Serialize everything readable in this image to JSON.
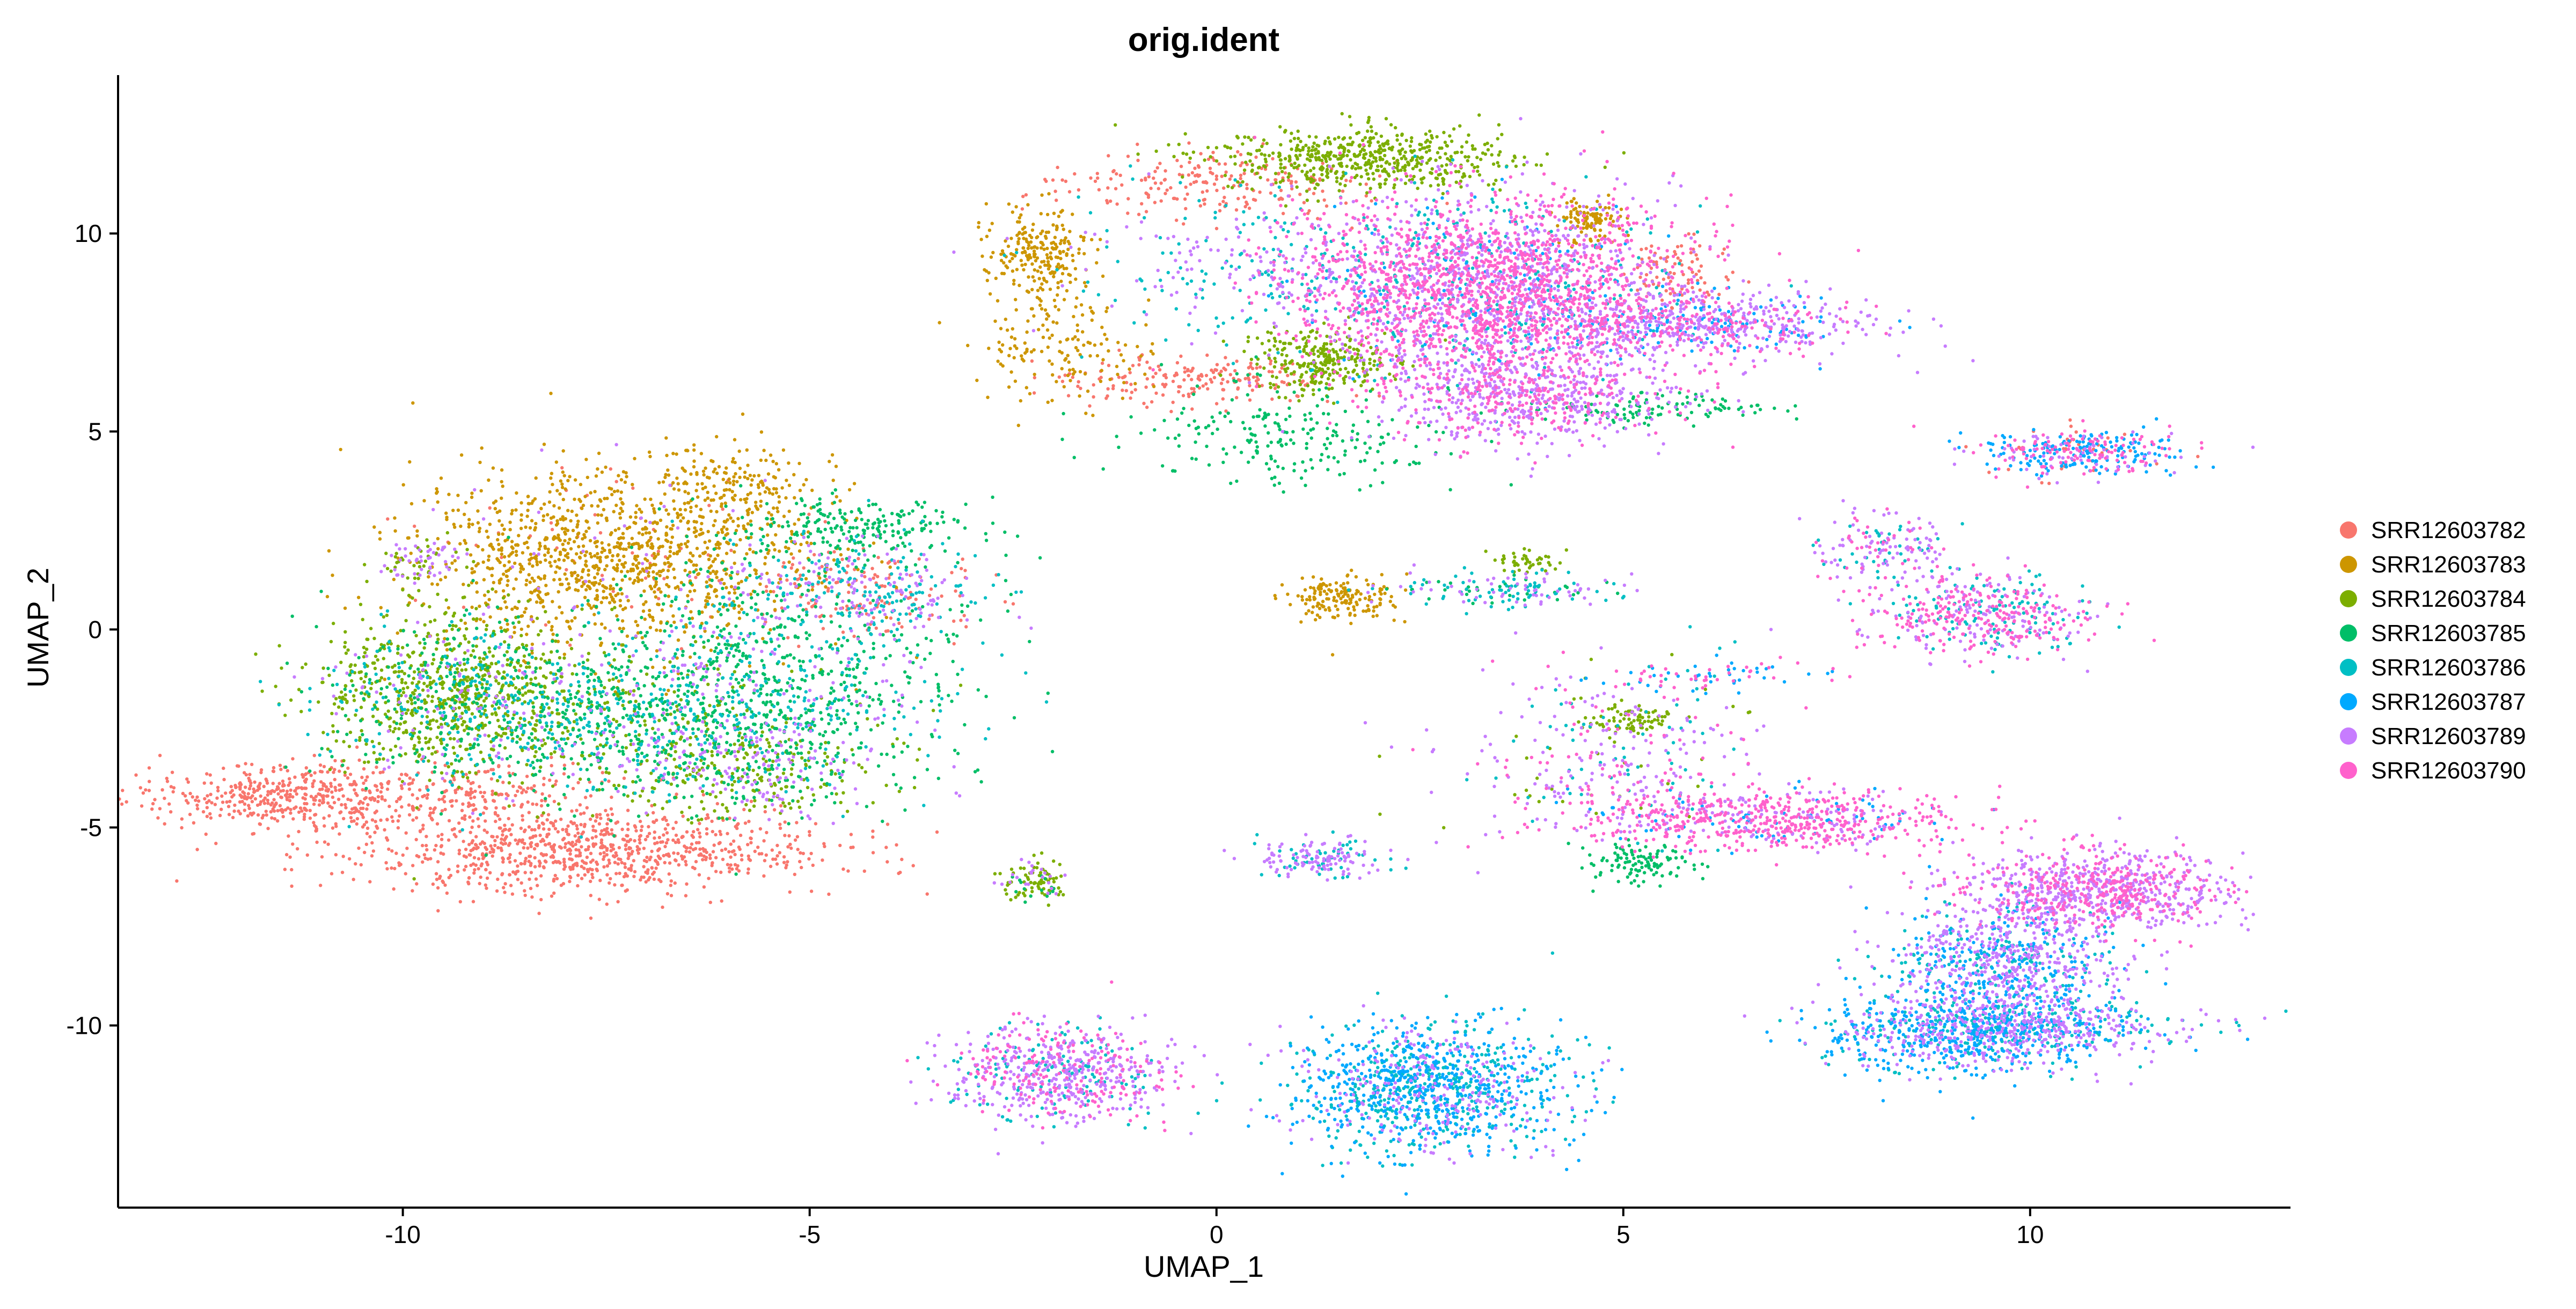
{
  "chart_data": {
    "type": "scatter",
    "title": "orig.ident",
    "xlabel": "UMAP_1",
    "ylabel": "UMAP_2",
    "xlim": [
      -13.5,
      13.2
    ],
    "ylim": [
      -14.6,
      14.0
    ],
    "x_ticks": [
      -10,
      -5,
      0,
      5,
      10
    ],
    "y_ticks": [
      -10,
      -5,
      0,
      5,
      10
    ],
    "grid": false,
    "legend_position": "right",
    "series": [
      {
        "name": "SRR12603782",
        "color": "#F8766D"
      },
      {
        "name": "SRR12603783",
        "color": "#CD9600"
      },
      {
        "name": "SRR12603784",
        "color": "#7CAE00"
      },
      {
        "name": "SRR12603785",
        "color": "#00BE67"
      },
      {
        "name": "SRR12603786",
        "color": "#00BFC4"
      },
      {
        "name": "SRR12603787",
        "color": "#00A9FF"
      },
      {
        "name": "SRR12603789",
        "color": "#C77CFF"
      },
      {
        "name": "SRR12603790",
        "color": "#FF61CC"
      }
    ],
    "clusters": [
      {
        "cx": -11.6,
        "cy": -4.2,
        "sx": 0.9,
        "sy": 0.4,
        "n": 700,
        "mix": [
          [
            0,
            1
          ]
        ]
      },
      {
        "cx": -9.5,
        "cy": -4.2,
        "sx": 1.2,
        "sy": 0.4,
        "n": 500,
        "mix": [
          [
            0,
            1
          ]
        ]
      },
      {
        "cx": -7.8,
        "cy": -5.6,
        "sx": 1.5,
        "sy": 0.5,
        "n": 1600,
        "mix": [
          [
            0,
            1
          ]
        ]
      },
      {
        "cx": -7.5,
        "cy": 1.8,
        "sx": 1.2,
        "sy": 1.1,
        "n": 2200,
        "mix": [
          [
            1,
            0.92
          ],
          [
            6,
            0.04
          ],
          [
            0,
            0.04
          ]
        ]
      },
      {
        "cx": -5.8,
        "cy": 3.5,
        "sx": 0.6,
        "sy": 0.6,
        "n": 300,
        "mix": [
          [
            1,
            1
          ]
        ]
      },
      {
        "cx": -9.4,
        "cy": -1.5,
        "sx": 0.8,
        "sy": 1.0,
        "n": 1800,
        "mix": [
          [
            2,
            0.7
          ],
          [
            3,
            0.15
          ],
          [
            4,
            0.1
          ],
          [
            6,
            0.05
          ]
        ]
      },
      {
        "cx": -7.3,
        "cy": -2.3,
        "sx": 1.5,
        "sy": 1.0,
        "n": 2000,
        "mix": [
          [
            3,
            0.35
          ],
          [
            4,
            0.3
          ],
          [
            2,
            0.25
          ],
          [
            6,
            0.1
          ]
        ]
      },
      {
        "cx": -5.5,
        "cy": -1.2,
        "sx": 1.2,
        "sy": 1.5,
        "n": 1600,
        "mix": [
          [
            3,
            0.65
          ],
          [
            4,
            0.2
          ],
          [
            6,
            0.15
          ]
        ]
      },
      {
        "cx": -5.8,
        "cy": -3.6,
        "sx": 0.8,
        "sy": 0.6,
        "n": 600,
        "mix": [
          [
            2,
            0.5
          ],
          [
            6,
            0.3
          ],
          [
            3,
            0.2
          ]
        ]
      },
      {
        "cx": -4.3,
        "cy": 1.0,
        "sx": 0.7,
        "sy": 0.6,
        "n": 700,
        "mix": [
          [
            0,
            0.4
          ],
          [
            4,
            0.35
          ],
          [
            6,
            0.25
          ]
        ]
      },
      {
        "cx": -4.4,
        "cy": 2.5,
        "sx": 0.7,
        "sy": 0.4,
        "n": 400,
        "mix": [
          [
            3,
            1
          ]
        ]
      },
      {
        "cx": -9.8,
        "cy": 1.7,
        "sx": 0.3,
        "sy": 0.3,
        "n": 150,
        "mix": [
          [
            6,
            0.5
          ],
          [
            2,
            0.5
          ]
        ]
      },
      {
        "cx": -2.2,
        "cy": 9.6,
        "sx": 0.3,
        "sy": 0.5,
        "n": 400,
        "mix": [
          [
            1,
            1
          ]
        ]
      },
      {
        "cx": -1.9,
        "cy": 7.2,
        "sx": 0.6,
        "sy": 0.8,
        "n": 300,
        "mix": [
          [
            1,
            1
          ]
        ]
      },
      {
        "cx": -0.2,
        "cy": 11.3,
        "sx": 1.0,
        "sy": 0.4,
        "n": 400,
        "mix": [
          [
            0,
            1
          ]
        ]
      },
      {
        "cx": -0.2,
        "cy": 6.3,
        "sx": 0.8,
        "sy": 0.3,
        "n": 350,
        "mix": [
          [
            0,
            1
          ]
        ]
      },
      {
        "cx": 1.8,
        "cy": 11.9,
        "sx": 0.9,
        "sy": 0.4,
        "n": 1000,
        "mix": [
          [
            2,
            1
          ]
        ]
      },
      {
        "cx": 1.3,
        "cy": 6.8,
        "sx": 0.4,
        "sy": 0.4,
        "n": 500,
        "mix": [
          [
            2,
            1
          ]
        ]
      },
      {
        "cx": 0.9,
        "cy": 4.9,
        "sx": 1.0,
        "sy": 0.6,
        "n": 400,
        "mix": [
          [
            3,
            1
          ]
        ]
      },
      {
        "cx": 0.4,
        "cy": 9.2,
        "sx": 1.2,
        "sy": 0.9,
        "n": 500,
        "mix": [
          [
            4,
            0.6
          ],
          [
            6,
            0.4
          ]
        ]
      },
      {
        "cx": 3.3,
        "cy": 8.6,
        "sx": 1.2,
        "sy": 1.2,
        "n": 5000,
        "mix": [
          [
            7,
            0.55
          ],
          [
            6,
            0.3
          ],
          [
            4,
            0.1
          ],
          [
            5,
            0.05
          ]
        ]
      },
      {
        "cx": 3.8,
        "cy": 5.9,
        "sx": 0.9,
        "sy": 0.6,
        "n": 1300,
        "mix": [
          [
            6,
            0.7
          ],
          [
            7,
            0.3
          ]
        ]
      },
      {
        "cx": 5.8,
        "cy": 7.7,
        "sx": 1.1,
        "sy": 0.4,
        "n": 1300,
        "mix": [
          [
            6,
            0.5
          ],
          [
            7,
            0.3
          ],
          [
            5,
            0.2
          ]
        ]
      },
      {
        "cx": 4.6,
        "cy": 10.3,
        "sx": 0.2,
        "sy": 0.3,
        "n": 200,
        "mix": [
          [
            1,
            1
          ]
        ]
      },
      {
        "cx": 5.7,
        "cy": 9.0,
        "sx": 0.3,
        "sy": 0.4,
        "n": 150,
        "mix": [
          [
            0,
            1
          ]
        ]
      },
      {
        "cx": 5.3,
        "cy": 5.6,
        "sx": 0.8,
        "sy": 0.2,
        "n": 200,
        "mix": [
          [
            3,
            1
          ]
        ]
      },
      {
        "cx": 1.6,
        "cy": 0.8,
        "sx": 0.3,
        "sy": 0.3,
        "n": 300,
        "mix": [
          [
            1,
            1
          ]
        ]
      },
      {
        "cx": 3.5,
        "cy": 1.0,
        "sx": 0.8,
        "sy": 0.2,
        "n": 300,
        "mix": [
          [
            4,
            0.4
          ],
          [
            6,
            0.4
          ],
          [
            3,
            0.2
          ]
        ]
      },
      {
        "cx": 3.8,
        "cy": 1.7,
        "sx": 0.2,
        "sy": 0.15,
        "n": 80,
        "mix": [
          [
            2,
            1
          ]
        ]
      },
      {
        "cx": -2.2,
        "cy": -6.3,
        "sx": 0.2,
        "sy": 0.25,
        "n": 200,
        "mix": [
          [
            2,
            0.6
          ],
          [
            3,
            0.2
          ],
          [
            6,
            0.2
          ]
        ]
      },
      {
        "cx": 1.3,
        "cy": -5.8,
        "sx": 0.4,
        "sy": 0.25,
        "n": 300,
        "mix": [
          [
            6,
            0.7
          ],
          [
            4,
            0.3
          ]
        ]
      },
      {
        "cx": -1.9,
        "cy": -11.2,
        "sx": 0.7,
        "sy": 0.6,
        "n": 1300,
        "mix": [
          [
            6,
            0.55
          ],
          [
            7,
            0.25
          ],
          [
            4,
            0.2
          ]
        ]
      },
      {
        "cx": 2.6,
        "cy": -11.6,
        "sx": 0.8,
        "sy": 0.8,
        "n": 2200,
        "mix": [
          [
            5,
            0.45
          ],
          [
            4,
            0.35
          ],
          [
            6,
            0.2
          ]
        ]
      },
      {
        "cx": 4.8,
        "cy": -3.2,
        "sx": 1.0,
        "sy": 1.1,
        "n": 600,
        "mix": [
          [
            6,
            0.5
          ],
          [
            7,
            0.2
          ],
          [
            4,
            0.2
          ],
          [
            2,
            0.1
          ]
        ]
      },
      {
        "cx": 6.8,
        "cy": -4.8,
        "sx": 1.2,
        "sy": 0.4,
        "n": 1300,
        "mix": [
          [
            7,
            0.7
          ],
          [
            6,
            0.2
          ],
          [
            5,
            0.1
          ]
        ]
      },
      {
        "cx": 5.2,
        "cy": -5.9,
        "sx": 0.3,
        "sy": 0.25,
        "n": 200,
        "mix": [
          [
            3,
            1
          ]
        ]
      },
      {
        "cx": 5.1,
        "cy": -2.3,
        "sx": 0.3,
        "sy": 0.2,
        "n": 150,
        "mix": [
          [
            2,
            1
          ]
        ]
      },
      {
        "cx": 6.0,
        "cy": -1.2,
        "sx": 0.8,
        "sy": 0.2,
        "n": 150,
        "mix": [
          [
            5,
            0.5
          ],
          [
            7,
            0.5
          ]
        ]
      },
      {
        "cx": 9.4,
        "cy": 0.4,
        "sx": 0.7,
        "sy": 0.5,
        "n": 900,
        "mix": [
          [
            7,
            0.5
          ],
          [
            6,
            0.3
          ],
          [
            4,
            0.2
          ]
        ]
      },
      {
        "cx": 8.2,
        "cy": 2.0,
        "sx": 0.4,
        "sy": 0.5,
        "n": 300,
        "mix": [
          [
            6,
            0.5
          ],
          [
            7,
            0.3
          ],
          [
            4,
            0.2
          ]
        ]
      },
      {
        "cx": 10.6,
        "cy": 4.5,
        "sx": 0.6,
        "sy": 0.3,
        "n": 700,
        "mix": [
          [
            5,
            0.4
          ],
          [
            7,
            0.3
          ],
          [
            6,
            0.2
          ],
          [
            0,
            0.1
          ]
        ]
      },
      {
        "cx": 10.8,
        "cy": -6.6,
        "sx": 0.8,
        "sy": 0.5,
        "n": 1600,
        "mix": [
          [
            6,
            0.6
          ],
          [
            7,
            0.4
          ]
        ]
      },
      {
        "cx": 9.7,
        "cy": -8.5,
        "sx": 0.7,
        "sy": 0.8,
        "n": 1600,
        "mix": [
          [
            6,
            0.5
          ],
          [
            5,
            0.3
          ],
          [
            4,
            0.2
          ]
        ]
      },
      {
        "cx": 9.2,
        "cy": -10.2,
        "sx": 0.9,
        "sy": 0.5,
        "n": 1500,
        "mix": [
          [
            5,
            0.5
          ],
          [
            6,
            0.3
          ],
          [
            4,
            0.2
          ]
        ]
      },
      {
        "cx": 10.5,
        "cy": -10.0,
        "sx": 0.8,
        "sy": 0.3,
        "n": 500,
        "mix": [
          [
            6,
            0.5
          ],
          [
            4,
            0.3
          ],
          [
            5,
            0.2
          ]
        ]
      }
    ]
  }
}
